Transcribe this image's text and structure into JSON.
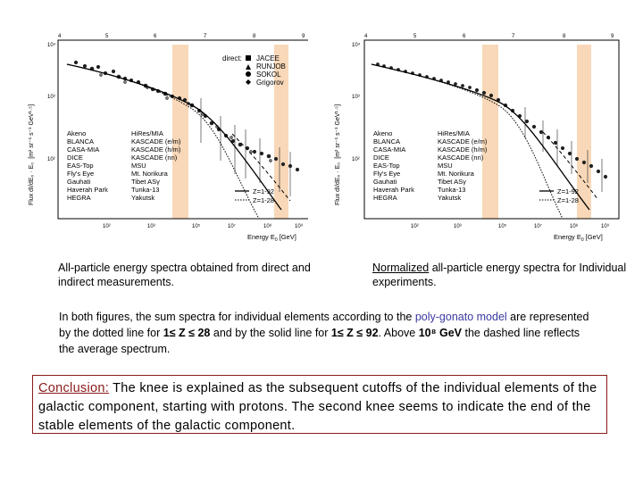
{
  "left_figure": {
    "x_axis_label": "Energy E",
    "x_axis_sub": "0",
    "x_axis_unit": "[GeV]",
    "y_axis_label": "Flux dI/dE₀ · E₀",
    "y_axis_units": "[m² sr⁻¹ s⁻¹ GeV¹·⁵]",
    "top_ticks": [
      "4",
      "5",
      "6",
      "7",
      "8",
      "9"
    ],
    "left_ticks": [
      "10⁴",
      "10³",
      "10²"
    ],
    "bottom_ticks": [
      "10²",
      "10³",
      "10⁵",
      "10⁷",
      "10⁸",
      "10⁹"
    ],
    "direct_label": "direct:",
    "direct_legend": [
      "JACEE",
      "RUNJOB",
      "SOKOL",
      "Grigorov"
    ],
    "legend_left": [
      "Akeno",
      "BLANCA",
      "CASA-MIA",
      "DICE",
      "EAS-Top",
      "Fly's Eye",
      "Gauhati",
      "Haverah Park",
      "HEGRA"
    ],
    "legend_right": [
      "HiRes/MIA",
      "KASCADE (e/m)",
      "KASCADE (h/m)",
      "KASCADE (nn)",
      "MSU",
      "Mt. Norikura",
      "Tibet ASγ",
      "Tunka-13",
      "Yakutsk"
    ],
    "z_legend": [
      "Z=1-92",
      "Z=1-28"
    ]
  },
  "right_figure": {
    "x_axis_label": "Energy E",
    "x_axis_sub": "0",
    "x_axis_unit": "[GeV]",
    "y_axis_label": "Flux dI/dE₀ · E₀",
    "y_axis_units": "[m² sr⁻¹ s⁻¹ GeV¹·⁵]",
    "top_ticks": [
      "4",
      "5",
      "6",
      "7",
      "8",
      "9"
    ],
    "left_ticks": [
      "10⁴",
      "10³",
      "10²"
    ],
    "bottom_ticks": [
      "10²",
      "10³",
      "10⁵",
      "10⁷",
      "10⁸",
      "10⁹"
    ],
    "legend_left": [
      "Akeno",
      "BLANCA",
      "CASA-MIA",
      "DICE",
      "EAS-Top",
      "Fly's Eye",
      "Gauhati",
      "Haverah Park",
      "HEGRA"
    ],
    "legend_right": [
      "HiRes/MIA",
      "KASCADE (e/m)",
      "KASCADE (h/m)",
      "KASCADE (nn)",
      "MSU",
      "Mt. Norikura",
      "Tibet ASγ",
      "Tunka-13",
      "Yakutsk"
    ],
    "z_legend": [
      "Z=1-92",
      "Z=1-28"
    ]
  },
  "captions": {
    "left": "All-particle energy spectra obtained from direct and indirect measurements.",
    "right_underlined": "Normalized",
    "right_rest": " all-particle energy spectra for Individual experiments."
  },
  "note": {
    "part1": "In both figures, the sum spectra for individual elements according to the ",
    "poly_gonato": "poly-gonato model",
    "part2": " are represented by the dotted line for ",
    "range1": "1≤ Z ≤ 28",
    "part3": " and by the solid line for ",
    "range2": "1≤ Z ≤ 92",
    "part4": ". Above ",
    "energy": "10⁸ GeV",
    "part5": " the dashed line reflects the average spectrum."
  },
  "conclusion": {
    "label": "Conclusion:",
    "text": " The knee is explained as the subsequent cutoffs of the individual elements of the galactic component, starting with protons. The second knee seems to indicate the end of the stable elements of the galactic component."
  },
  "colors": {
    "band": "#f8d8b8",
    "conclusion_border": "#8b1a1a",
    "poly_gonato": "#3a3aa0"
  }
}
